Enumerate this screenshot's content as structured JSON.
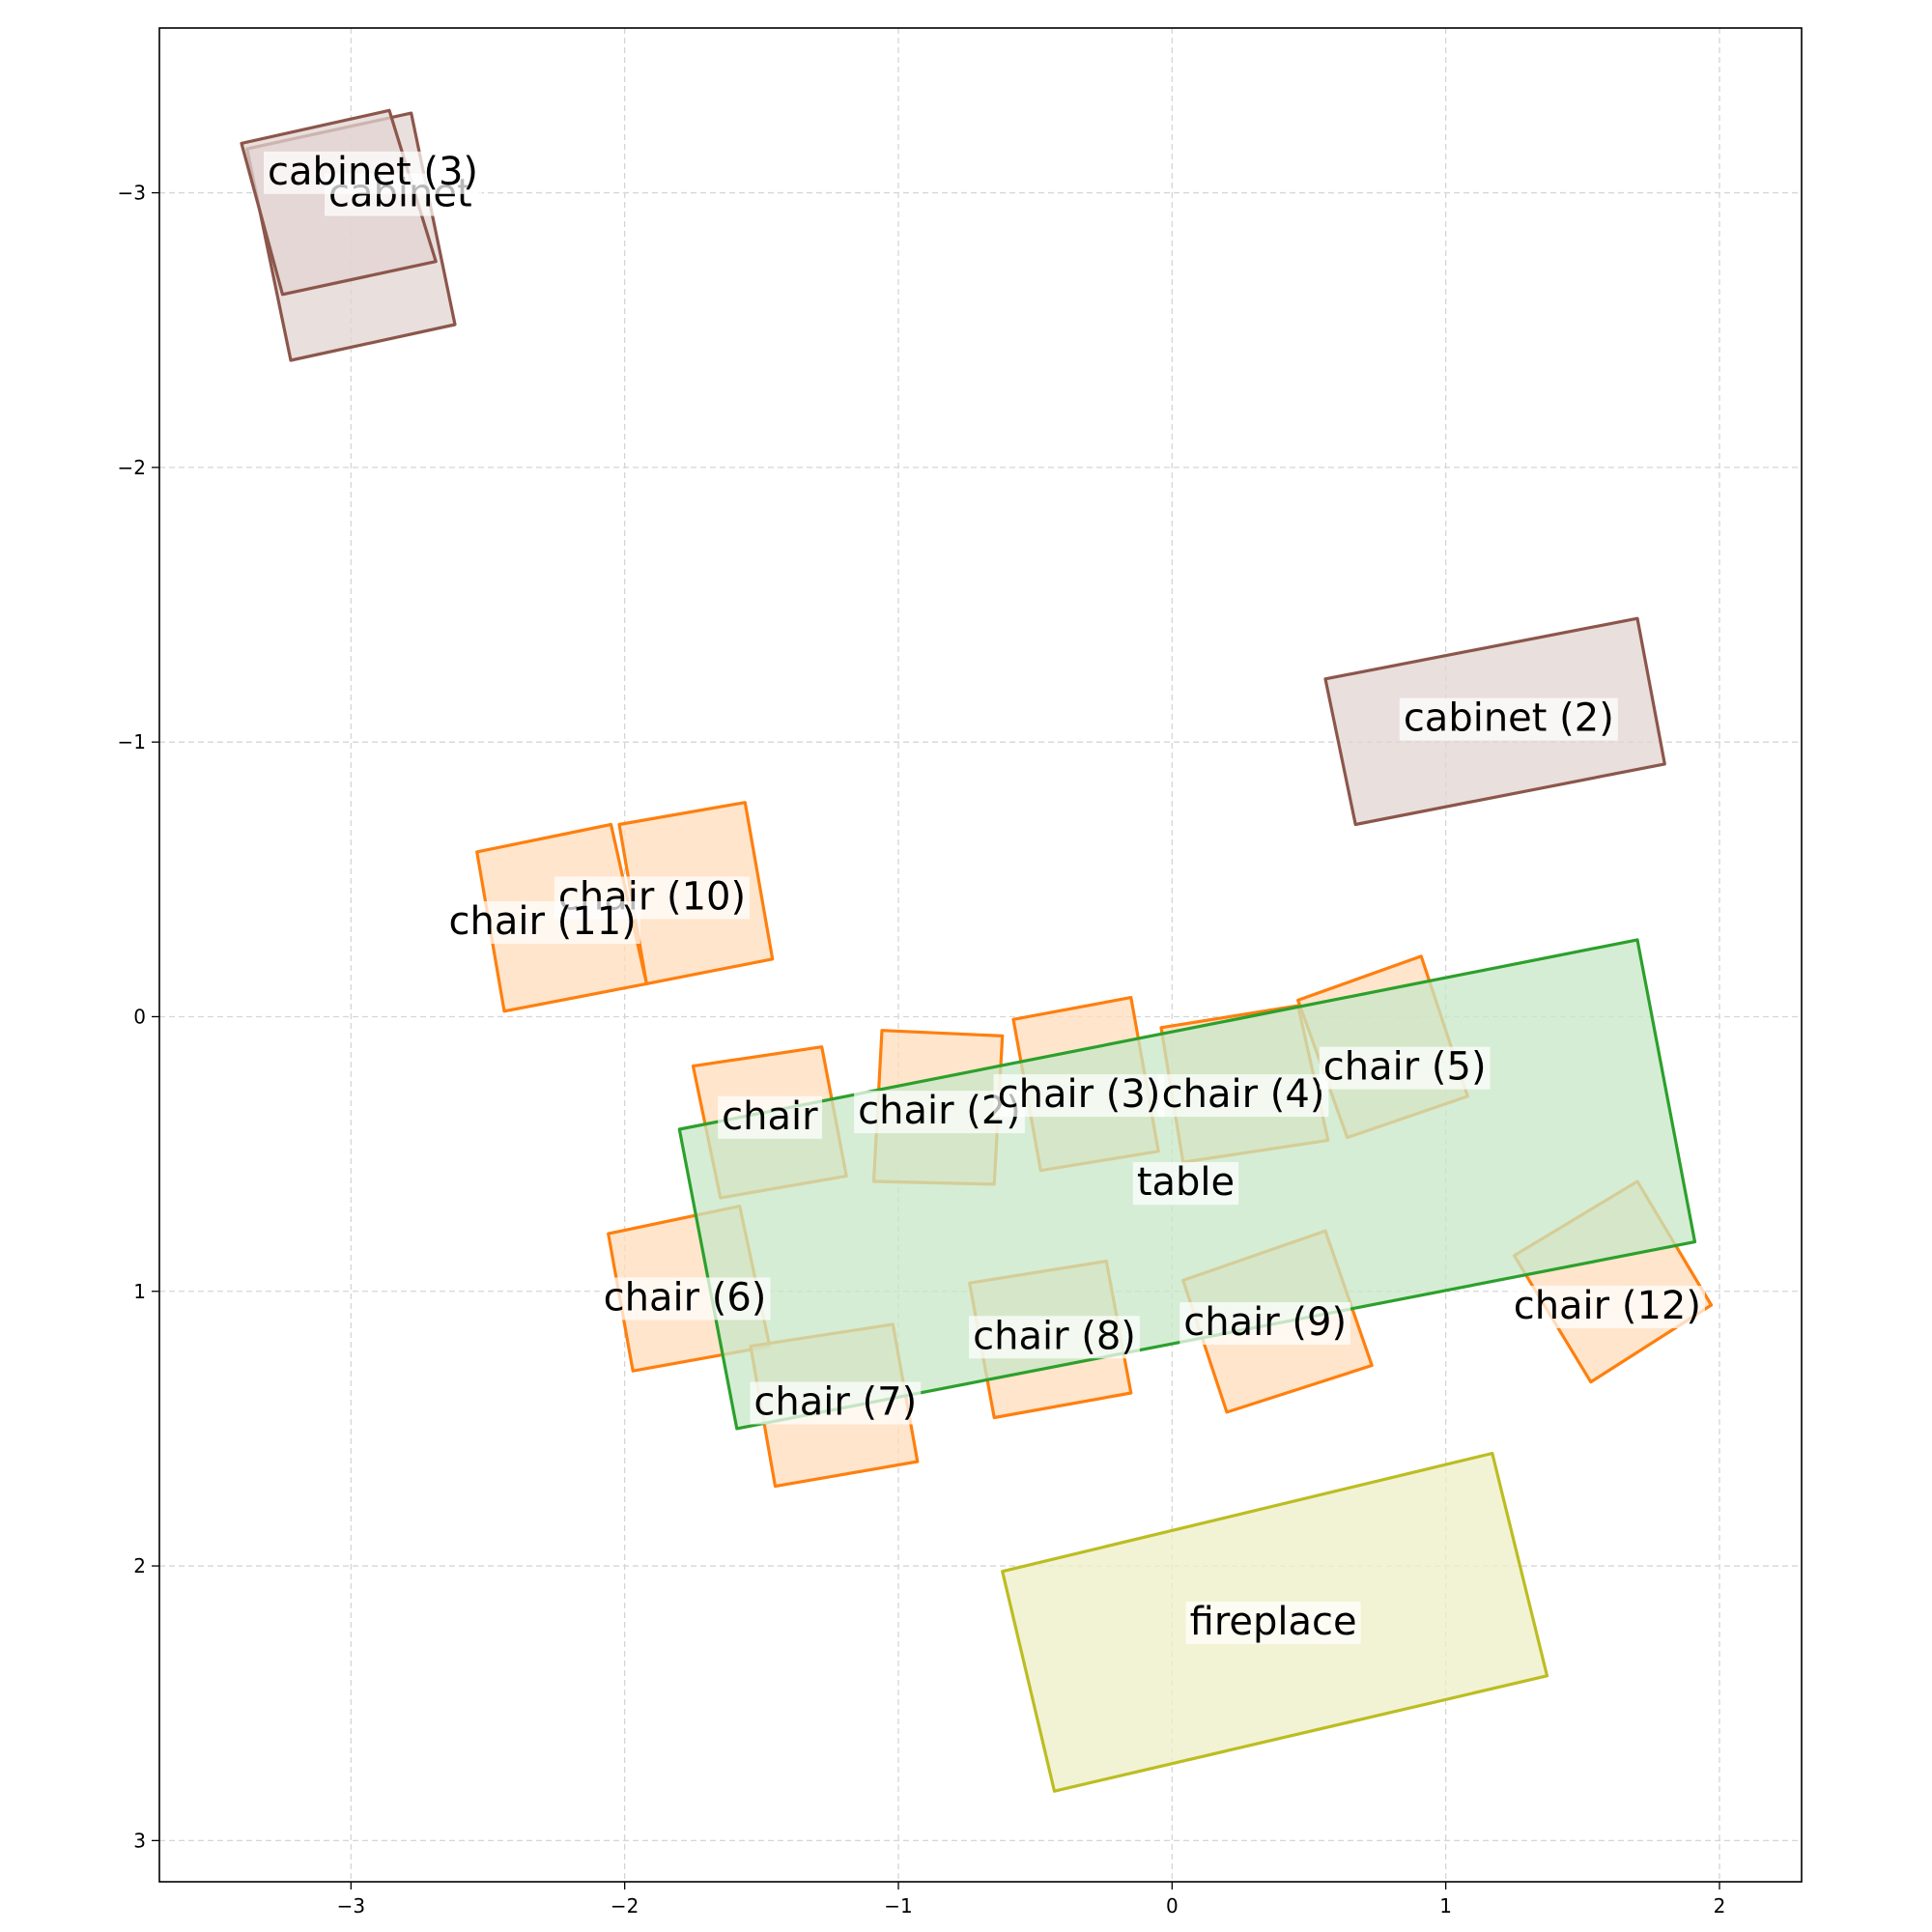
{
  "chart_data": {
    "type": "floorplan",
    "xlim": [
      -3.7,
      2.3
    ],
    "ylim": [
      3.15,
      -3.6
    ],
    "y_inverted": true,
    "grid": true,
    "x_ticks": [
      -3,
      -2,
      -1,
      0,
      1,
      2
    ],
    "y_ticks": [
      -3,
      -2,
      -1,
      0,
      1,
      2,
      3
    ],
    "x_tick_labels": [
      "−3",
      "−2",
      "−1",
      "0",
      "1",
      "2"
    ],
    "y_tick_labels": [
      "−3",
      "−2",
      "−1",
      "0",
      "1",
      "2",
      "3"
    ],
    "categories": {
      "table": {
        "stroke": "#2ca02c",
        "fill": "#c7e7c7"
      },
      "chair": {
        "stroke": "#ff7f0e",
        "fill": "#ffdcbb"
      },
      "cabinet": {
        "stroke": "#8c564b",
        "fill": "#e2d4d2"
      },
      "fireplace": {
        "stroke": "#bcbd22",
        "fill": "#eeefc6"
      }
    },
    "objects": [
      {
        "label": "cabinet",
        "category": "cabinet",
        "center": [
          -2.82,
          -3.0
        ],
        "corners": [
          [
            -3.22,
            -2.39
          ],
          [
            -2.62,
            -2.52
          ],
          [
            -2.78,
            -3.29
          ],
          [
            -3.38,
            -3.16
          ]
        ]
      },
      {
        "label": "cabinet (3)",
        "category": "cabinet",
        "center": [
          -2.92,
          -3.08
        ],
        "corners": [
          [
            -3.25,
            -2.63
          ],
          [
            -2.69,
            -2.75
          ],
          [
            -2.86,
            -3.3
          ],
          [
            -3.4,
            -3.18
          ]
        ]
      },
      {
        "label": "cabinet (2)",
        "category": "cabinet",
        "center": [
          1.23,
          -1.09
        ],
        "corners": [
          [
            0.67,
            -0.7
          ],
          [
            1.8,
            -0.92
          ],
          [
            1.7,
            -1.45
          ],
          [
            0.56,
            -1.23
          ]
        ]
      },
      {
        "label": "chair (10)",
        "category": "chair",
        "center": [
          -1.9,
          -0.44
        ],
        "corners": [
          [
            -1.92,
            -0.12
          ],
          [
            -1.46,
            -0.21
          ],
          [
            -1.56,
            -0.78
          ],
          [
            -2.02,
            -0.7
          ]
        ]
      },
      {
        "label": "chair (11)",
        "category": "chair",
        "center": [
          -2.3,
          -0.35
        ],
        "corners": [
          [
            -2.44,
            -0.02
          ],
          [
            -1.92,
            -0.12
          ],
          [
            -2.05,
            -0.7
          ],
          [
            -2.54,
            -0.6
          ]
        ]
      },
      {
        "label": "chair",
        "category": "chair",
        "center": [
          -1.47,
          0.36
        ],
        "corners": [
          [
            -1.65,
            0.66
          ],
          [
            -1.19,
            0.58
          ],
          [
            -1.28,
            0.11
          ],
          [
            -1.75,
            0.18
          ]
        ]
      },
      {
        "label": "chair (2)",
        "category": "chair",
        "center": [
          -0.85,
          0.34
        ],
        "corners": [
          [
            -1.09,
            0.6
          ],
          [
            -0.65,
            0.61
          ],
          [
            -0.62,
            0.07
          ],
          [
            -1.06,
            0.05
          ]
        ]
      },
      {
        "label": "chair (3)",
        "category": "chair",
        "center": [
          -0.34,
          0.28
        ],
        "corners": [
          [
            -0.48,
            0.56
          ],
          [
            -0.05,
            0.49
          ],
          [
            -0.15,
            -0.07
          ],
          [
            -0.58,
            0.01
          ]
        ]
      },
      {
        "label": "chair (4)",
        "category": "chair",
        "center": [
          0.26,
          0.28
        ],
        "corners": [
          [
            0.04,
            0.53
          ],
          [
            0.57,
            0.45
          ],
          [
            0.46,
            -0.04
          ],
          [
            -0.04,
            0.04
          ]
        ]
      },
      {
        "label": "chair (5)",
        "category": "chair",
        "center": [
          0.85,
          0.18
        ],
        "corners": [
          [
            0.64,
            0.44
          ],
          [
            1.08,
            0.29
          ],
          [
            0.91,
            -0.22
          ],
          [
            0.46,
            -0.06
          ]
        ]
      },
      {
        "label": "chair (6)",
        "category": "chair",
        "center": [
          -1.78,
          1.02
        ],
        "corners": [
          [
            -1.97,
            1.29
          ],
          [
            -1.47,
            1.2
          ],
          [
            -1.58,
            0.69
          ],
          [
            -2.06,
            0.79
          ]
        ]
      },
      {
        "label": "chair (7)",
        "category": "chair",
        "center": [
          -1.23,
          1.4
        ],
        "corners": [
          [
            -1.45,
            1.71
          ],
          [
            -0.93,
            1.62
          ],
          [
            -1.02,
            1.12
          ],
          [
            -1.54,
            1.2
          ]
        ]
      },
      {
        "label": "chair (8)",
        "category": "chair",
        "center": [
          -0.43,
          1.16
        ],
        "corners": [
          [
            -0.65,
            1.46
          ],
          [
            -0.15,
            1.37
          ],
          [
            -0.24,
            0.89
          ],
          [
            -0.74,
            0.97
          ]
        ]
      },
      {
        "label": "chair (9)",
        "category": "chair",
        "center": [
          0.34,
          1.11
        ],
        "corners": [
          [
            0.2,
            1.44
          ],
          [
            0.73,
            1.27
          ],
          [
            0.56,
            0.78
          ],
          [
            0.04,
            0.96
          ]
        ]
      },
      {
        "label": "chair (12)",
        "category": "chair",
        "center": [
          1.59,
          1.05
        ],
        "corners": [
          [
            1.53,
            1.33
          ],
          [
            1.97,
            1.05
          ],
          [
            1.7,
            0.6
          ],
          [
            1.25,
            0.87
          ]
        ]
      },
      {
        "label": "table",
        "category": "table",
        "center": [
          0.05,
          0.6
        ],
        "corners": [
          [
            -1.59,
            1.5
          ],
          [
            1.91,
            0.82
          ],
          [
            1.7,
            -0.28
          ],
          [
            -1.8,
            0.41
          ]
        ]
      },
      {
        "label": "fireplace",
        "category": "fireplace",
        "center": [
          0.37,
          2.2
        ],
        "corners": [
          [
            -0.43,
            2.82
          ],
          [
            1.37,
            2.4
          ],
          [
            1.17,
            1.59
          ],
          [
            -0.62,
            2.02
          ]
        ]
      }
    ]
  }
}
